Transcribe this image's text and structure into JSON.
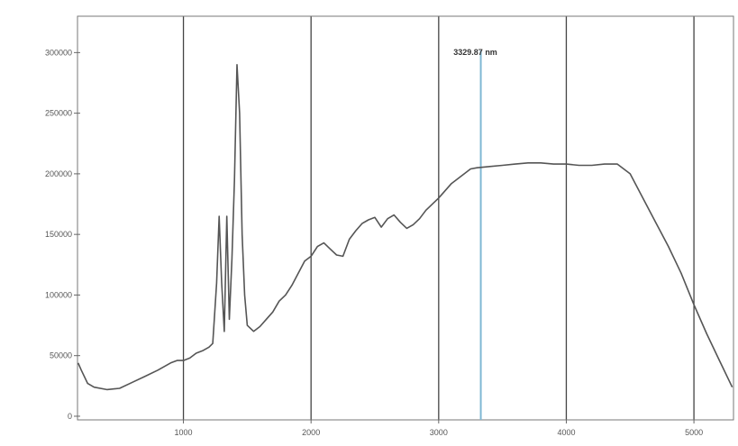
{
  "chart_data": {
    "type": "line",
    "title": "",
    "xlabel": "",
    "ylabel": "",
    "xlim": [
      170,
      5310
    ],
    "ylim": [
      -3000,
      330000
    ],
    "x_ticks": [
      {
        "value": 1000,
        "label": "1000"
      },
      {
        "value": 2000,
        "label": "2000"
      },
      {
        "value": 3000,
        "label": "3000"
      },
      {
        "value": 4000,
        "label": "4000"
      },
      {
        "value": 5000,
        "label": "5000"
      }
    ],
    "y_ticks": [
      {
        "value": 0,
        "label": "0"
      },
      {
        "value": 50000,
        "label": "50000"
      },
      {
        "value": 100000,
        "label": "100000"
      },
      {
        "value": 150000,
        "label": "150000"
      },
      {
        "value": 200000,
        "label": "200000"
      },
      {
        "value": 250000,
        "label": "250000"
      },
      {
        "value": 300000,
        "label": "300000"
      }
    ],
    "grid": {
      "vertical": true,
      "horizontal": false
    },
    "marker": {
      "x": 3330,
      "label": "3329.87 nm",
      "color": "#7fb8d4"
    },
    "series": [
      {
        "color": "#555555",
        "x": [
          175,
          200,
          250,
          300,
          400,
          500,
          600,
          700,
          800,
          900,
          950,
          1000,
          1050,
          1100,
          1150,
          1200,
          1230,
          1260,
          1280,
          1300,
          1320,
          1340,
          1360,
          1380,
          1400,
          1420,
          1440,
          1460,
          1480,
          1500,
          1550,
          1600,
          1650,
          1700,
          1750,
          1800,
          1850,
          1900,
          1950,
          2000,
          2050,
          2100,
          2150,
          2200,
          2250,
          2300,
          2350,
          2400,
          2450,
          2500,
          2550,
          2600,
          2650,
          2700,
          2750,
          2800,
          2850,
          2900,
          3000,
          3100,
          3200,
          3250,
          3300,
          3400,
          3500,
          3600,
          3700,
          3800,
          3900,
          4000,
          4100,
          4200,
          4300,
          4400,
          4500,
          4600,
          4700,
          4800,
          4900,
          5000,
          5100,
          5200,
          5300
        ],
        "y": [
          44000,
          38000,
          27000,
          24000,
          22000,
          23000,
          28000,
          33000,
          38000,
          44000,
          46000,
          46000,
          48000,
          52000,
          54000,
          57000,
          60000,
          110000,
          165000,
          110000,
          70000,
          165000,
          80000,
          130000,
          195000,
          290000,
          250000,
          150000,
          100000,
          75000,
          70000,
          74000,
          80000,
          86000,
          95000,
          100000,
          108000,
          118000,
          128000,
          132000,
          140000,
          143000,
          138000,
          133000,
          132000,
          146000,
          153000,
          159000,
          162000,
          164000,
          156000,
          163000,
          166000,
          160000,
          155000,
          158000,
          163000,
          170000,
          180000,
          192000,
          200000,
          204000,
          205000,
          206000,
          207000,
          208000,
          209000,
          209000,
          208000,
          208000,
          207000,
          207000,
          208000,
          208000,
          200000,
          180000,
          160000,
          140000,
          118000,
          92000,
          68000,
          46000,
          24000
        ]
      }
    ]
  }
}
